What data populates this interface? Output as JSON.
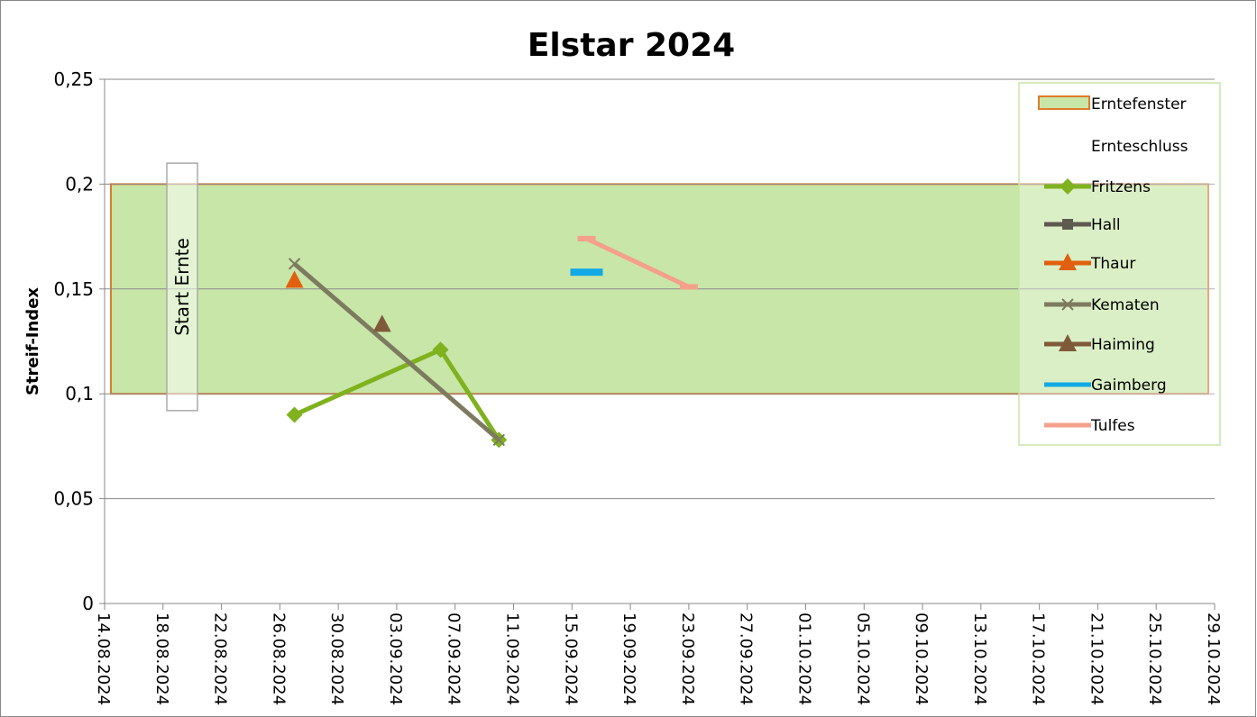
{
  "chart_data": {
    "type": "line",
    "title": "Elstar 2024",
    "ylabel": "Streif-Index",
    "annotation": "Start Ernte",
    "xlim": [
      "14.08.2024",
      "29.10.2024"
    ],
    "xticks": [
      "14.08.2024",
      "18.08.2024",
      "22.08.2024",
      "26.08.2024",
      "30.08.2024",
      "03.09.2024",
      "07.09.2024",
      "11.09.2024",
      "15.09.2024",
      "19.09.2024",
      "23.09.2024",
      "27.09.2024",
      "01.10.2024",
      "05.10.2024",
      "09.10.2024",
      "13.10.2024",
      "17.10.2024",
      "21.10.2024",
      "25.10.2024",
      "29.10.2024"
    ],
    "ylim": [
      0,
      0.25
    ],
    "yticks": [
      0,
      {
        "value": 0.05,
        "label": "0,05"
      },
      {
        "value": 0.1,
        "label": "0,1"
      },
      {
        "value": 0.15,
        "label": "0,15"
      },
      {
        "value": 0.2,
        "label": "0,2"
      },
      {
        "value": 0.25,
        "label": "0,25"
      }
    ],
    "grid": true,
    "legend": "upper right",
    "band": {
      "name": "Erntefenster",
      "color": "#c8e6a8",
      "edge": "#e07b2a",
      "range": [
        0.1,
        0.2
      ],
      "x": [
        "14.08.2024",
        "29.10.2024"
      ]
    },
    "series": [
      {
        "name": "Ernteschluss",
        "x": [],
        "values": []
      },
      {
        "name": "Fritzens",
        "color": "#7fb21e",
        "marker": "diamond",
        "x": [
          "27.08.2024",
          "06.09.2024",
          "10.09.2024"
        ],
        "values": [
          0.09,
          0.121,
          0.078
        ]
      },
      {
        "name": "Hall",
        "color": "#5f5a50",
        "marker": "square",
        "x": [],
        "values": []
      },
      {
        "name": "Thaur",
        "color": "#e0600f",
        "marker": "triangle",
        "x": [
          "27.08.2024"
        ],
        "values": [
          0.154
        ]
      },
      {
        "name": "Kematen",
        "color": "#7d7a60",
        "marker": "x",
        "x": [
          "27.08.2024",
          "10.09.2024"
        ],
        "values": [
          0.162,
          0.078
        ]
      },
      {
        "name": "Haiming",
        "color": "#7f5a3a",
        "marker": "triangle",
        "x": [
          "02.09.2024"
        ],
        "values": [
          0.133
        ]
      },
      {
        "name": "Gaimberg",
        "color": "#12a9e6",
        "marker": "dash",
        "x": [
          "16.09.2024"
        ],
        "values": [
          0.158
        ]
      },
      {
        "name": "Tulfes",
        "color": "#f4a08a",
        "marker": "dash",
        "x": [
          "16.09.2024",
          "23.09.2024"
        ],
        "values": [
          0.174,
          0.151
        ]
      }
    ]
  }
}
